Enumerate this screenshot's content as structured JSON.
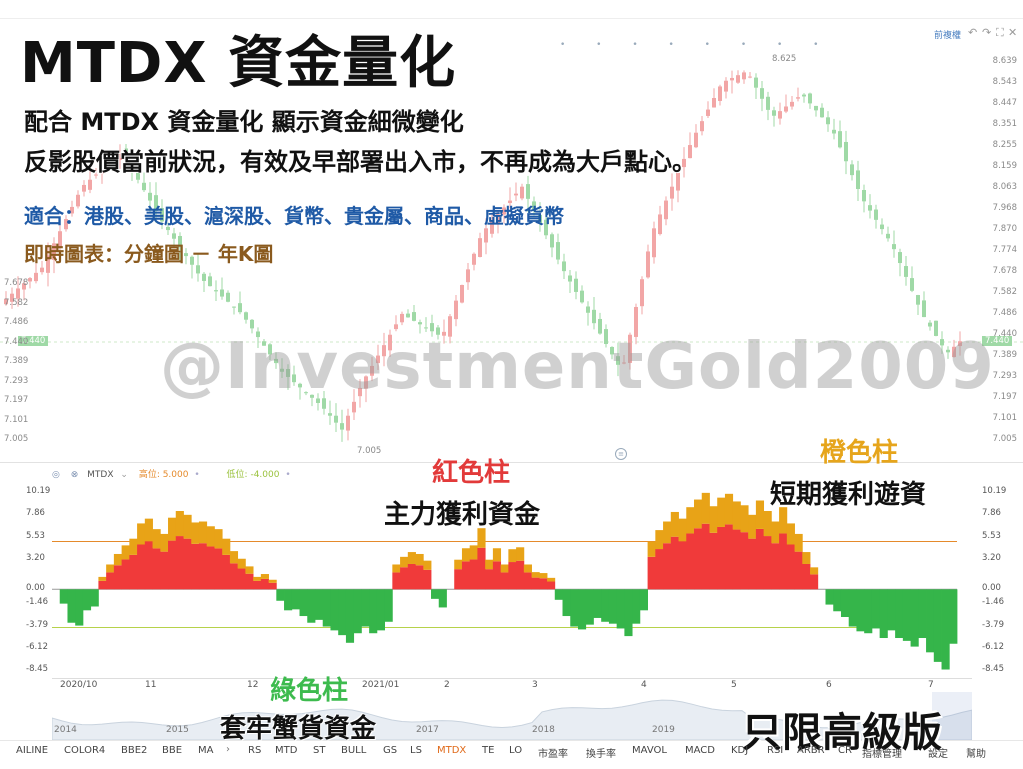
{
  "title": "MTDX 資金量化",
  "lines": {
    "l1": "配合 MTDX 資金量化 顯示資金細微變化",
    "l2": "反影股價當前狀況，有效及早部署出入市，不再成為大戶點心。",
    "l3": "適合：港股、美股、滬深股、貨幣、貴金屬、商品、虛擬貨幣",
    "l4": "即時圖表：分鐘圖 － 年K圖"
  },
  "watermark": "@InvestmentGold2009",
  "captions": {
    "red_title": "紅色柱",
    "red_desc": "主力獲利資金",
    "orange_title": "橙色柱",
    "orange_desc": "短期獲利遊資",
    "green_title": "綠色柱",
    "green_desc": "套牢蟹貨資金",
    "premium": "只限高級版"
  },
  "topbar": {
    "right_label": "前複權"
  },
  "price_axis": {
    "right_ticks": [
      "8.639",
      "8.543",
      "8.447",
      "8.351",
      "8.255",
      "8.159",
      "8.063",
      "7.968",
      "7.870",
      "7.774",
      "7.678",
      "7.582",
      "7.486",
      "7.440",
      "7.389",
      "7.293",
      "7.197",
      "7.101",
      "7.005"
    ],
    "left_ticks": [
      "7.678",
      "7.582",
      "7.486",
      "7.440",
      "7.389",
      "7.293",
      "7.197",
      "7.101",
      "7.005"
    ],
    "high_label": "8.625",
    "low_label": "7.005",
    "last_price": "7.440"
  },
  "indicator": {
    "name": "MTDX",
    "high_label": "高位: 5.000",
    "low_label": "低位: -4.000",
    "ticks": [
      "10.19",
      "7.86",
      "5.53",
      "3.20",
      "0.00",
      "-1.46",
      "-3.79",
      "-6.12",
      "-8.45"
    ],
    "high_level": 5.0,
    "low_level": -4.0
  },
  "months": [
    "2020/10",
    "11",
    "12",
    "2021/01",
    "2",
    "3",
    "4",
    "5",
    "6",
    "7"
  ],
  "years": [
    "2014",
    "2015",
    "2017",
    "2018",
    "2019"
  ],
  "tabs": [
    "AILINE",
    "COLOR4",
    "BBE2",
    "BBE",
    "MA",
    "RS",
    "MTD",
    "ST",
    "BULL",
    "GS",
    "LS",
    "MTDX",
    "TE",
    "LO",
    "市盈率",
    "換手率",
    "MAVOL",
    "MACD",
    "KDJ",
    "RSI",
    "ARBR",
    "CR",
    "指標管理",
    "設定",
    "幫助"
  ],
  "active_tab": "MTDX",
  "colors": {
    "red": "#f03a3a",
    "orange": "#e8a317",
    "green": "#35b54a",
    "candle_red": "#f2a6a6",
    "candle_green": "#9fd9a6"
  },
  "chart_data": {
    "type": "bar",
    "series": [
      {
        "name": "紅色柱",
        "note": "positive main funds"
      },
      {
        "name": "橙色柱",
        "note": "short-term funds"
      },
      {
        "name": "綠色柱",
        "note": "trapped funds"
      }
    ],
    "values": [
      0.0,
      -1.5,
      -3.5,
      -3.8,
      -2.2,
      -1.8,
      1.3,
      2.6,
      3.7,
      4.6,
      5.3,
      6.9,
      7.4,
      6.3,
      5.8,
      7.5,
      8.2,
      7.8,
      7.0,
      7.1,
      6.6,
      6.3,
      5.3,
      4.0,
      3.2,
      2.4,
      1.3,
      1.6,
      1.0,
      -1.2,
      -2.2,
      -2.1,
      -2.8,
      -3.5,
      -3.2,
      -3.9,
      -4.3,
      -4.8,
      -5.6,
      -4.6,
      -3.9,
      -4.6,
      -4.3,
      -3.4,
      2.6,
      3.4,
      3.9,
      3.7,
      3.0,
      -1.0,
      -1.9,
      0.0,
      3.1,
      4.3,
      4.6,
      6.4,
      3.1,
      4.3,
      2.6,
      4.2,
      4.4,
      2.6,
      1.8,
      1.7,
      1.2,
      -1.1,
      -2.8,
      -3.9,
      -4.2,
      -3.7,
      -3.0,
      -3.4,
      -3.6,
      -4.1,
      -4.9,
      -3.6,
      -2.2,
      5.0,
      6.2,
      7.1,
      8.1,
      7.4,
      8.6,
      9.4,
      10.1,
      8.7,
      9.6,
      10.0,
      9.2,
      8.8,
      7.8,
      9.3,
      8.2,
      7.1,
      8.6,
      6.9,
      5.8,
      3.9,
      2.3,
      0.0,
      -1.6,
      -2.3,
      -2.9,
      -3.9,
      -4.4,
      -4.6,
      -4.1,
      -5.1,
      -4.3,
      -5.1,
      -5.4,
      -6.0,
      -5.1,
      -6.6,
      -7.6,
      -8.4,
      -5.7
    ],
    "ylim": [
      -8.45,
      10.19
    ],
    "high_level": 5.0,
    "low_level": -4.0
  }
}
